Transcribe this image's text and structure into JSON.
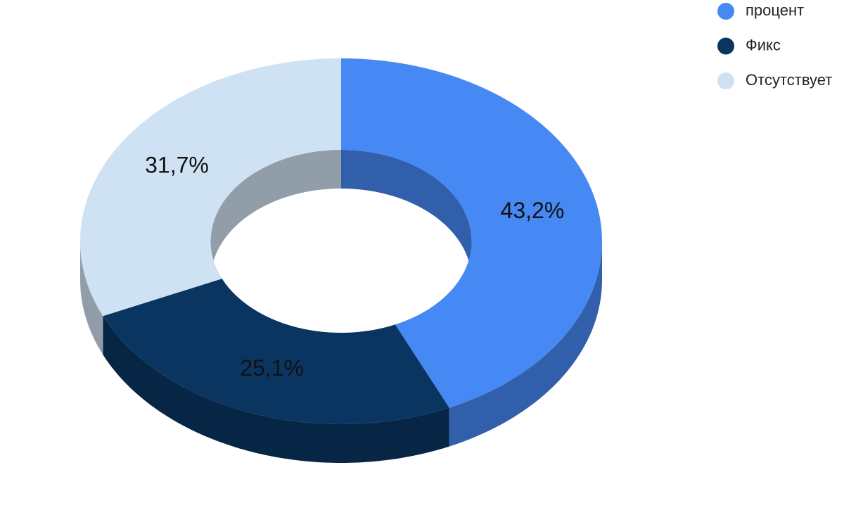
{
  "chart_data": {
    "type": "pie",
    "categories": [
      "процент",
      "Фикс",
      "Отсутствует"
    ],
    "values": [
      43.2,
      25.1,
      31.7
    ],
    "value_labels": [
      "43,2%",
      "25,1%",
      "31,7%"
    ],
    "colors": [
      "#4688f4",
      "#0a3561",
      "#cfe2f3"
    ],
    "legend": "top-right"
  }
}
